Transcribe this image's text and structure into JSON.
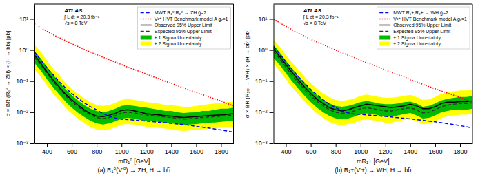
{
  "chart_data": [
    {
      "type": "line",
      "title": "(a) R₁⁰(V′⁰) → ZH, H → bb̄",
      "x_label": "mR₁⁰ [GeV]",
      "y_label": "σ × BR (R₁⁰ → ZH) × (H → bb̄) [pb]",
      "log": "y",
      "grid": false,
      "legend": "upper right",
      "xlim": [
        300,
        1900
      ],
      "ylim": [
        0.001,
        30
      ],
      "xticks": [
        400,
        600,
        800,
        1000,
        1200,
        1400,
        1600,
        1800
      ],
      "yticks": [
        {
          "value": 0.001,
          "label": "10⁻³"
        },
        {
          "value": 0.01,
          "label": "10⁻²"
        },
        {
          "value": 0.1,
          "label": "10⁻¹"
        },
        {
          "value": 1,
          "label": "10⁰"
        },
        {
          "value": 10,
          "label": "10¹"
        }
      ],
      "annotations": [
        "ATLAS",
        "∫ L dt = 20.3 fb⁻¹",
        "√s = 8 TeV"
      ],
      "x": [
        300,
        350,
        400,
        450,
        500,
        550,
        600,
        650,
        700,
        750,
        800,
        850,
        900,
        950,
        1000,
        1050,
        1100,
        1150,
        1200,
        1250,
        1300,
        1350,
        1400,
        1450,
        1500,
        1550,
        1600,
        1650,
        1700,
        1750,
        1800,
        1850,
        1900
      ],
      "series": [
        {
          "name": "MWT R₁⁰,R₂⁰ → ZH g̃=2",
          "type": "line",
          "color": "blue",
          "line_style": "dashed",
          "values": [
            0.85,
            0.48,
            0.27,
            0.16,
            0.095,
            0.06,
            0.04,
            0.028,
            0.02,
            0.015,
            0.012,
            0.009,
            0.0075,
            0.0065,
            0.006,
            0.0058,
            0.0056,
            0.0054,
            0.0052,
            0.005,
            0.0048,
            0.0046,
            0.0044,
            0.0042,
            0.004,
            0.0038,
            0.0035,
            0.0033,
            0.0031,
            0.0029,
            0.0027,
            0.0025,
            0.0023
          ]
        },
        {
          "name": "V²⁺ HVT Benchmark model A gᵥ=1",
          "type": "line",
          "color": "red",
          "line_style": "dotted",
          "values": [
            7.0,
            5.2,
            4.0,
            3.1,
            2.5,
            2.0,
            1.6,
            1.3,
            1.05,
            0.86,
            0.71,
            0.59,
            0.49,
            0.41,
            0.34,
            0.28,
            0.24,
            0.2,
            0.17,
            0.14,
            0.12,
            0.1,
            0.085,
            0.071,
            0.06,
            0.051,
            0.043,
            0.037,
            0.031,
            0.027,
            0.023,
            0.019,
            0.016
          ]
        },
        {
          "name": "Observed 95% Upper Limit",
          "type": "line",
          "color": "black",
          "line_style": "solid",
          "values": [
            0.7,
            0.38,
            0.2,
            0.11,
            0.064,
            0.038,
            0.025,
            0.017,
            0.012,
            0.009,
            0.0075,
            0.0072,
            0.008,
            0.0092,
            0.0115,
            0.012,
            0.0112,
            0.01,
            0.009,
            0.0085,
            0.0082,
            0.0078,
            0.0075,
            0.007,
            0.0068,
            0.007,
            0.0072,
            0.0075,
            0.0078,
            0.008,
            0.0082,
            0.0085,
            0.009
          ]
        },
        {
          "name": "Expected 95% Upper Limit",
          "type": "line",
          "color": "#333333",
          "line_style": "dashed",
          "values": [
            0.6,
            0.34,
            0.18,
            0.098,
            0.058,
            0.034,
            0.022,
            0.015,
            0.011,
            0.0082,
            0.0068,
            0.0062,
            0.0068,
            0.0078,
            0.0095,
            0.01,
            0.0095,
            0.0088,
            0.0082,
            0.0078,
            0.0075,
            0.007,
            0.0068,
            0.0063,
            0.006,
            0.0062,
            0.0065,
            0.0068,
            0.007,
            0.0072,
            0.0075,
            0.0078,
            0.0082
          ]
        },
        {
          "name": "± 1 Sigma Uncertainty",
          "type": "area",
          "color": "#00bb00",
          "upper": [
            0.95,
            0.54,
            0.29,
            0.16,
            0.092,
            0.054,
            0.035,
            0.024,
            0.017,
            0.013,
            0.011,
            0.01,
            0.011,
            0.013,
            0.016,
            0.017,
            0.016,
            0.015,
            0.014,
            0.013,
            0.012,
            0.011,
            0.011,
            0.01,
            0.0095,
            0.0098,
            0.01,
            0.011,
            0.011,
            0.012,
            0.013,
            0.013,
            0.014
          ],
          "lower": [
            0.38,
            0.22,
            0.115,
            0.063,
            0.037,
            0.022,
            0.014,
            0.0096,
            0.007,
            0.0053,
            0.0044,
            0.004,
            0.0044,
            0.0051,
            0.0062,
            0.0066,
            0.0062,
            0.0057,
            0.0053,
            0.0051,
            0.0049,
            0.0046,
            0.0044,
            0.0041,
            0.0039,
            0.004,
            0.0042,
            0.0044,
            0.0046,
            0.0047,
            0.0049,
            0.0051,
            0.0053
          ]
        },
        {
          "name": "± 2 Sigma Uncertainty",
          "type": "area",
          "color": "yellow",
          "upper": [
            1.5,
            0.85,
            0.46,
            0.25,
            0.15,
            0.086,
            0.056,
            0.038,
            0.028,
            0.021,
            0.017,
            0.016,
            0.017,
            0.02,
            0.025,
            0.027,
            0.025,
            0.023,
            0.021,
            0.02,
            0.019,
            0.017,
            0.017,
            0.016,
            0.015,
            0.015,
            0.016,
            0.017,
            0.018,
            0.019,
            0.02,
            0.021,
            0.022
          ],
          "lower": [
            0.24,
            0.14,
            0.074,
            0.04,
            0.024,
            0.014,
            0.009,
            0.0062,
            0.0045,
            0.0034,
            0.0028,
            0.0026,
            0.0028,
            0.0033,
            0.004,
            0.0042,
            0.004,
            0.0037,
            0.0034,
            0.0033,
            0.0031,
            0.003,
            0.0028,
            0.0026,
            0.0025,
            0.0026,
            0.0027,
            0.0028,
            0.003,
            0.003,
            0.0032,
            0.0033,
            0.0034
          ]
        }
      ]
    },
    {
      "type": "line",
      "title": "(b) R₁±(V′±) → WH, H → bb̄",
      "x_label": "mR₁± [GeV]",
      "y_label": "σ × BR (R₁± → WH) × (H → bb̄) [pb]",
      "log": "y",
      "grid": false,
      "legend": "upper right",
      "xlim": [
        300,
        1900
      ],
      "ylim": [
        0.001,
        30
      ],
      "xticks": [
        400,
        600,
        800,
        1000,
        1200,
        1400,
        1600,
        1800
      ],
      "yticks": [
        {
          "value": 0.001,
          "label": "10⁻³"
        },
        {
          "value": 0.01,
          "label": "10⁻²"
        },
        {
          "value": 0.1,
          "label": "10⁻¹"
        },
        {
          "value": 1,
          "label": "10⁰"
        },
        {
          "value": 10,
          "label": "10¹"
        }
      ],
      "annotations": [
        "ATLAS",
        "∫ L dt = 20.3 fb⁻¹",
        "√s = 8 TeV"
      ],
      "x": [
        300,
        350,
        400,
        450,
        500,
        550,
        600,
        650,
        700,
        750,
        800,
        850,
        900,
        950,
        1000,
        1050,
        1100,
        1150,
        1200,
        1250,
        1300,
        1350,
        1400,
        1450,
        1500,
        1550,
        1600,
        1650,
        1700,
        1750,
        1800,
        1850,
        1900
      ],
      "series": [
        {
          "name": "MWT R₁±,R₂± → WH g̃=2",
          "type": "line",
          "color": "blue",
          "line_style": "dashed",
          "values": [
            1.3,
            0.75,
            0.42,
            0.24,
            0.14,
            0.085,
            0.054,
            0.036,
            0.025,
            0.018,
            0.014,
            0.011,
            0.0095,
            0.0088,
            0.0085,
            0.0082,
            0.0079,
            0.0076,
            0.0073,
            0.007,
            0.0067,
            0.0064,
            0.0061,
            0.0058,
            0.0055,
            0.0052,
            0.0049,
            0.0046,
            0.0043,
            0.004,
            0.0037,
            0.0034,
            0.0031
          ]
        },
        {
          "name": "V²⁺ HVT Benchmark model A gᵥ=1",
          "type": "line",
          "color": "red",
          "line_style": "dotted",
          "values": [
            10.0,
            7.5,
            5.8,
            4.5,
            3.5,
            2.8,
            2.2,
            1.8,
            1.5,
            1.2,
            1.0,
            0.82,
            0.68,
            0.57,
            0.47,
            0.39,
            0.33,
            0.28,
            0.23,
            0.19,
            0.16,
            0.14,
            0.11,
            0.095,
            0.079,
            0.067,
            0.057,
            0.048,
            0.041,
            0.035,
            0.03,
            0.025,
            0.021
          ]
        },
        {
          "name": "Observed 95% Upper Limit",
          "type": "line",
          "color": "black",
          "line_style": "solid",
          "values": [
            1.1,
            0.62,
            0.34,
            0.19,
            0.11,
            0.064,
            0.04,
            0.026,
            0.019,
            0.014,
            0.012,
            0.011,
            0.012,
            0.014,
            0.016,
            0.018,
            0.017,
            0.016,
            0.015,
            0.014,
            0.015,
            0.016,
            0.018,
            0.016,
            0.013,
            0.013,
            0.015,
            0.019,
            0.021,
            0.021,
            0.022,
            0.022,
            0.023
          ]
        },
        {
          "name": "Expected 95% Upper Limit",
          "type": "line",
          "color": "#333333",
          "line_style": "dashed",
          "values": [
            0.9,
            0.52,
            0.28,
            0.155,
            0.09,
            0.054,
            0.034,
            0.022,
            0.016,
            0.012,
            0.01,
            0.0092,
            0.0098,
            0.011,
            0.013,
            0.014,
            0.013,
            0.012,
            0.011,
            0.011,
            0.012,
            0.013,
            0.014,
            0.012,
            0.0095,
            0.01,
            0.012,
            0.015,
            0.017,
            0.018,
            0.019,
            0.019,
            0.02
          ]
        },
        {
          "name": "± 1 Sigma Uncertainty",
          "type": "area",
          "color": "#00bb00",
          "upper": [
            1.45,
            0.83,
            0.45,
            0.25,
            0.145,
            0.086,
            0.054,
            0.035,
            0.025,
            0.019,
            0.016,
            0.015,
            0.016,
            0.018,
            0.021,
            0.023,
            0.021,
            0.019,
            0.018,
            0.018,
            0.019,
            0.021,
            0.022,
            0.019,
            0.015,
            0.016,
            0.019,
            0.024,
            0.027,
            0.029,
            0.031,
            0.031,
            0.033
          ],
          "lower": [
            0.57,
            0.33,
            0.18,
            0.098,
            0.057,
            0.034,
            0.021,
            0.014,
            0.01,
            0.0076,
            0.0064,
            0.0059,
            0.0063,
            0.0072,
            0.0086,
            0.0092,
            0.0086,
            0.0079,
            0.0072,
            0.0072,
            0.0079,
            0.0088,
            0.0094,
            0.0079,
            0.0063,
            0.0066,
            0.0079,
            0.0099,
            0.011,
            0.012,
            0.012,
            0.012,
            0.013
          ]
        },
        {
          "name": "± 2 Sigma Uncertainty",
          "type": "area",
          "color": "yellow",
          "upper": [
            2.2,
            1.28,
            0.7,
            0.39,
            0.23,
            0.136,
            0.086,
            0.056,
            0.04,
            0.03,
            0.025,
            0.023,
            0.025,
            0.028,
            0.034,
            0.037,
            0.034,
            0.031,
            0.029,
            0.029,
            0.031,
            0.034,
            0.036,
            0.031,
            0.025,
            0.026,
            0.031,
            0.039,
            0.044,
            0.047,
            0.05,
            0.05,
            0.053
          ],
          "lower": [
            0.37,
            0.21,
            0.115,
            0.063,
            0.037,
            0.022,
            0.014,
            0.009,
            0.0065,
            0.0049,
            0.0041,
            0.0038,
            0.0041,
            0.0046,
            0.0055,
            0.0059,
            0.0055,
            0.0051,
            0.0046,
            0.0046,
            0.0051,
            0.0057,
            0.0061,
            0.0051,
            0.0041,
            0.0043,
            0.0051,
            0.0065,
            0.0074,
            0.0079,
            0.0083,
            0.0083,
            0.0087
          ]
        }
      ]
    }
  ]
}
